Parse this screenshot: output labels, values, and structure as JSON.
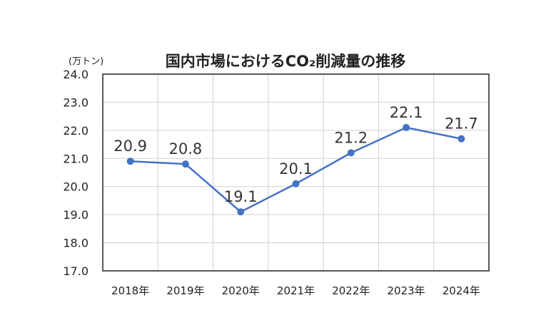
{
  "chart_data": {
    "type": "line",
    "title": "国内市場におけるCO₂削減量の推移",
    "unit_label": "(万トン)",
    "categories": [
      "2018年",
      "2019年",
      "2020年",
      "2021年",
      "2022年",
      "2023年",
      "2024年"
    ],
    "values": [
      20.9,
      20.8,
      19.1,
      20.1,
      21.2,
      22.1,
      21.7
    ],
    "data_labels": [
      "20.9",
      "20.8",
      "19.1",
      "20.1",
      "21.2",
      "22.1",
      "21.7"
    ],
    "ylim": [
      17.0,
      24.0
    ],
    "yticks": [
      "17.0",
      "18.0",
      "19.0",
      "20.0",
      "21.0",
      "22.0",
      "23.0",
      "24.0"
    ],
    "grid": true,
    "legend": "none",
    "color": "#4472c4"
  }
}
